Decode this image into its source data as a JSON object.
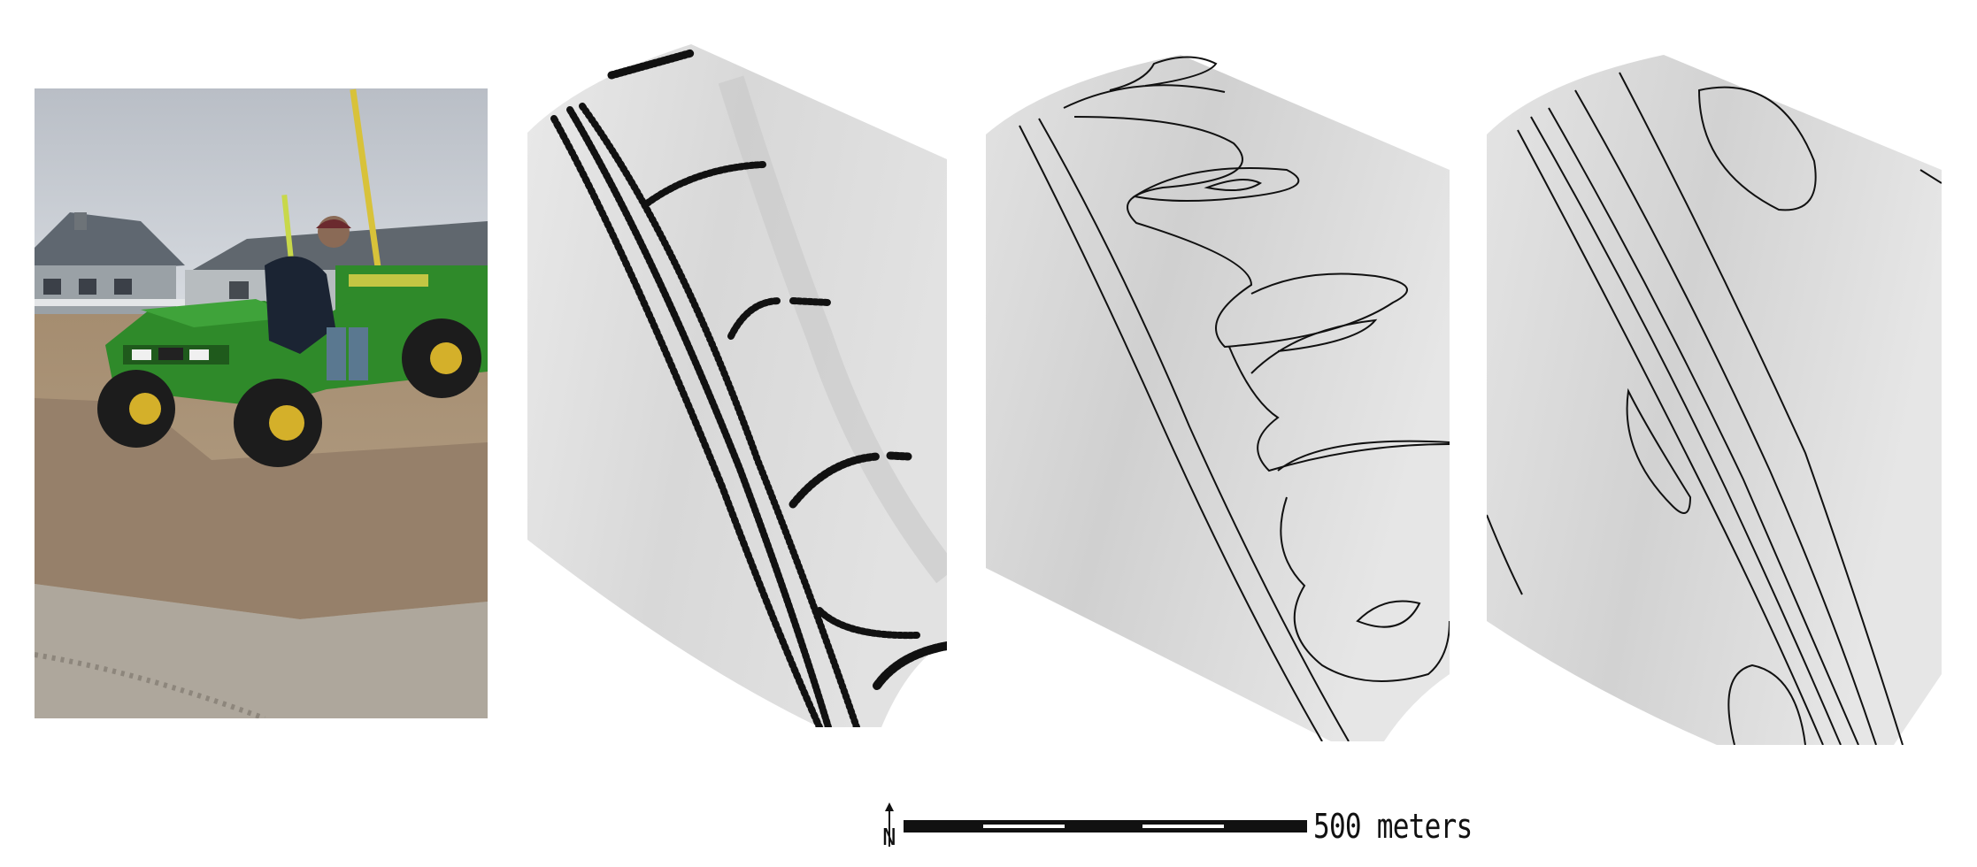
{
  "figure": {
    "scale_bar": {
      "label": "500 meters",
      "north_symbol": "N"
    },
    "panels": [
      {
        "name": "field-photo",
        "content": "utility-vehicle-on-beach-dune"
      },
      {
        "name": "survey-point-surface",
        "content": "gps-survey-tracks"
      },
      {
        "name": "contour-surface-1",
        "content": "contour-lines"
      },
      {
        "name": "contour-surface-2",
        "content": "contour-lines"
      }
    ]
  },
  "colors": {
    "surface_light": "#ececec",
    "surface_mid": "#d4d4d4",
    "line": "#111111",
    "vehicle_green": "#2f8a2a",
    "sand": "#b8a48a",
    "sky": "#c9ced4"
  }
}
